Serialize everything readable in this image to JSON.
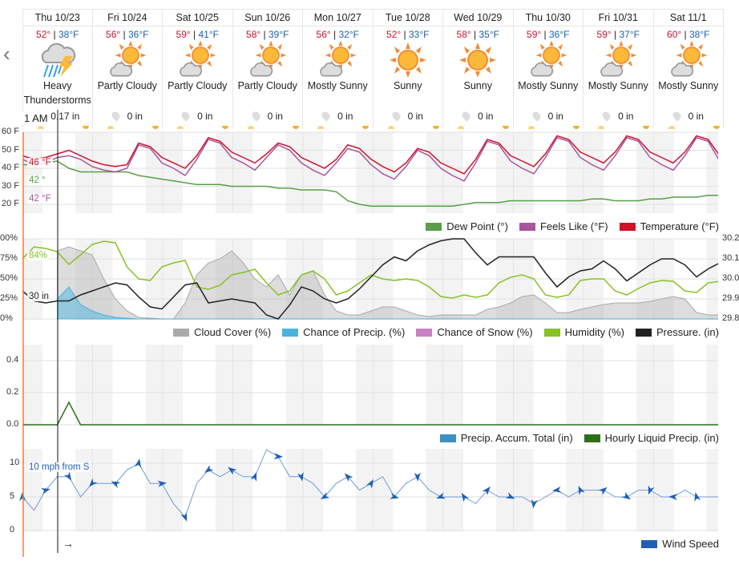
{
  "nav": {
    "prev_icon": "chevron-left-icon",
    "prev": "‹"
  },
  "days": [
    {
      "name": "Thu 10/23",
      "hi": "52°",
      "lo": "38°F",
      "cond": "Heavy Thunderstorms",
      "icon": "thunderstorm-icon",
      "precip": "0.17 in"
    },
    {
      "name": "Fri 10/24",
      "hi": "56°",
      "lo": "36°F",
      "cond": "Partly Cloudy",
      "icon": "partly-cloudy-icon",
      "precip": "0 in"
    },
    {
      "name": "Sat 10/25",
      "hi": "59°",
      "lo": "41°F",
      "cond": "Partly Cloudy",
      "icon": "partly-cloudy-icon",
      "precip": "0 in"
    },
    {
      "name": "Sun 10/26",
      "hi": "58°",
      "lo": "39°F",
      "cond": "Partly Cloudy",
      "icon": "partly-cloudy-icon",
      "precip": "0 in"
    },
    {
      "name": "Mon 10/27",
      "hi": "56°",
      "lo": "32°F",
      "cond": "Mostly Sunny",
      "icon": "partly-cloudy-icon",
      "precip": "0 in"
    },
    {
      "name": "Tue 10/28",
      "hi": "52°",
      "lo": "33°F",
      "cond": "Sunny",
      "icon": "sunny-icon",
      "precip": "0 in"
    },
    {
      "name": "Wed 10/29",
      "hi": "58°",
      "lo": "35°F",
      "cond": "Sunny",
      "icon": "sunny-icon",
      "precip": "0 in"
    },
    {
      "name": "Thu 10/30",
      "hi": "59°",
      "lo": "36°F",
      "cond": "Mostly Sunny",
      "icon": "partly-cloudy-icon",
      "precip": "0 in"
    },
    {
      "name": "Fri 10/31",
      "hi": "59°",
      "lo": "37°F",
      "cond": "Mostly Sunny",
      "icon": "partly-cloudy-icon",
      "precip": "0 in"
    },
    {
      "name": "Sat 11/1",
      "hi": "60°",
      "lo": "38°F",
      "cond": "Mostly Sunny",
      "icon": "partly-cloudy-icon",
      "precip": "0 in"
    }
  ],
  "cursor": {
    "time": "1 AM",
    "temp": "46 °F",
    "dew": "42 °",
    "feels": "42 °F",
    "humidity": "84%",
    "pressure": "30 in",
    "wind": "10 mph from S",
    "wind_dir": "→"
  },
  "axes": {
    "temp": [
      "60 F",
      "50 F",
      "40 F",
      "30 F",
      "20 F"
    ],
    "pct": [
      "00%",
      "75%",
      "50%",
      "25%",
      "0%"
    ],
    "pressure": [
      "30.2",
      "30.1",
      "30.0",
      "29.9",
      "29.8"
    ],
    "precip": [
      "0.4",
      "0.2",
      "0.0"
    ],
    "wind": [
      "10",
      "5",
      "0"
    ]
  },
  "legends": {
    "temp": [
      {
        "label": "Dew Point (°)",
        "color": "#5a9e48"
      },
      {
        "label": "Feels Like (°F)",
        "color": "#a6559e"
      },
      {
        "label": "Temperature (°F)",
        "color": "#d0112b"
      }
    ],
    "atm": [
      {
        "label": "Cloud Cover (%)",
        "color": "#aaaaaa"
      },
      {
        "label": "Chance of Precip. (%)",
        "color": "#4ab3dd"
      },
      {
        "label": "Chance of Snow (%)",
        "color": "#c97fc4"
      },
      {
        "label": "Humidity (%)",
        "color": "#88c225"
      },
      {
        "label": "Pressure. (in)",
        "color": "#222222"
      }
    ],
    "precip": [
      {
        "label": "Precip. Accum. Total (in)",
        "color": "#3d8fc0"
      },
      {
        "label": "Hourly Liquid Precip. (in)",
        "color": "#2e6e1a"
      }
    ],
    "wind": [
      {
        "label": "Wind Speed",
        "color": "#1f5fb5"
      }
    ]
  },
  "chart_data": {
    "type": "line",
    "x_step_hours": 4,
    "temperature": [
      47,
      45,
      46,
      48,
      50,
      47,
      44,
      42,
      41,
      42,
      54,
      52,
      46,
      43,
      40,
      47,
      57,
      55,
      49,
      46,
      43,
      48,
      54,
      52,
      46,
      43,
      40,
      45,
      53,
      51,
      45,
      41,
      38,
      43,
      51,
      49,
      43,
      40,
      37,
      45,
      56,
      54,
      47,
      44,
      41,
      48,
      58,
      56,
      49,
      46,
      43,
      49,
      58,
      56,
      49,
      46,
      43,
      49,
      58,
      56,
      47
    ],
    "feels_like": [
      45,
      42,
      43,
      46,
      47,
      45,
      41,
      39,
      38,
      40,
      53,
      51,
      43,
      40,
      36,
      45,
      56,
      54,
      46,
      43,
      39,
      46,
      53,
      50,
      43,
      39,
      36,
      43,
      51,
      49,
      42,
      37,
      34,
      41,
      50,
      47,
      40,
      36,
      33,
      43,
      55,
      53,
      44,
      40,
      37,
      46,
      57,
      55,
      46,
      42,
      39,
      47,
      57,
      55,
      46,
      42,
      39,
      47,
      57,
      55,
      44
    ],
    "dew_point": [
      42,
      42,
      43,
      44,
      40,
      38,
      38,
      38,
      38,
      38,
      36,
      35,
      34,
      33,
      32,
      31,
      31,
      31,
      30,
      30,
      30,
      30,
      29,
      29,
      28,
      28,
      28,
      27,
      22,
      20,
      19,
      19,
      19,
      19,
      19,
      19,
      19,
      19,
      20,
      21,
      21,
      21,
      22,
      22,
      22,
      22,
      22,
      22,
      22,
      23,
      23,
      22,
      22,
      22,
      23,
      23,
      24,
      24,
      24,
      25,
      25
    ],
    "humidity": [
      75,
      90,
      88,
      84,
      68,
      80,
      93,
      97,
      95,
      65,
      50,
      48,
      65,
      70,
      73,
      40,
      37,
      42,
      55,
      58,
      62,
      45,
      30,
      35,
      55,
      60,
      50,
      30,
      35,
      45,
      55,
      50,
      48,
      50,
      48,
      40,
      28,
      26,
      30,
      27,
      30,
      45,
      52,
      55,
      50,
      30,
      27,
      30,
      48,
      50,
      50,
      35,
      30,
      38,
      45,
      48,
      47,
      35,
      33,
      45,
      47
    ],
    "cloud_cover": [
      null,
      null,
      null,
      85,
      90,
      85,
      80,
      50,
      25,
      10,
      2,
      1,
      0,
      0,
      20,
      55,
      70,
      75,
      85,
      70,
      50,
      40,
      55,
      30,
      55,
      60,
      30,
      10,
      5,
      5,
      10,
      15,
      15,
      10,
      5,
      3,
      5,
      5,
      5,
      5,
      12,
      15,
      20,
      28,
      30,
      20,
      8,
      8,
      12,
      15,
      18,
      20,
      20,
      20,
      22,
      25,
      28,
      25,
      8,
      5,
      5
    ],
    "chance_precip": [
      null,
      null,
      null,
      25,
      40,
      18,
      10,
      5,
      2,
      1,
      0,
      0,
      0,
      0,
      0,
      0,
      0,
      0,
      0,
      0,
      0,
      0,
      0,
      0,
      0,
      0,
      0,
      0,
      0,
      0,
      0,
      0,
      0,
      0,
      0,
      0,
      0,
      0,
      0,
      0,
      0,
      0,
      0,
      0,
      0,
      0,
      0,
      0,
      0,
      0,
      0,
      0,
      0,
      0,
      0,
      0,
      0,
      0,
      0,
      0,
      0
    ],
    "pressure_in": [
      29.94,
      29.89,
      29.88,
      29.89,
      29.89,
      29.92,
      29.94,
      29.96,
      29.98,
      29.97,
      29.91,
      29.86,
      29.85,
      29.91,
      29.97,
      29.98,
      29.88,
      29.89,
      29.9,
      29.89,
      29.88,
      29.82,
      29.8,
      29.87,
      29.96,
      29.94,
      29.9,
      29.88,
      29.9,
      29.95,
      30.01,
      30.07,
      30.11,
      30.09,
      30.14,
      30.17,
      30.19,
      30.2,
      30.2,
      30.13,
      30.07,
      30.11,
      30.11,
      30.11,
      30.11,
      30.03,
      29.96,
      30.01,
      30.04,
      30.05,
      30.09,
      30.05,
      29.99,
      30.03,
      30.07,
      30.1,
      30.1,
      30.07,
      30.01,
      30.05,
      30.08
    ],
    "hourly_liquid_precip_in": [
      0,
      0,
      0,
      0,
      0.14,
      0,
      0,
      0,
      0,
      0,
      0,
      0,
      0,
      0,
      0,
      0,
      0,
      0,
      0,
      0,
      0,
      0,
      0,
      0,
      0,
      0,
      0,
      0,
      0,
      0,
      0,
      0,
      0,
      0,
      0,
      0,
      0,
      0,
      0,
      0,
      0,
      0,
      0,
      0,
      0,
      0,
      0,
      0,
      0,
      0,
      0,
      0,
      0,
      0,
      0,
      0,
      0,
      0,
      0,
      0,
      0
    ],
    "wind_mph": [
      5,
      3,
      6,
      8,
      8,
      5,
      7,
      7,
      7,
      9,
      10,
      7,
      7,
      4,
      2,
      7,
      9,
      8,
      9,
      8,
      8,
      12,
      11,
      8,
      8,
      7,
      5,
      7,
      8,
      6,
      7,
      8,
      5,
      7,
      8,
      6,
      5,
      5,
      5,
      4,
      6,
      5,
      5,
      5,
      4,
      5,
      6,
      5,
      6,
      6,
      6,
      5,
      5,
      6,
      6,
      5,
      5,
      6,
      5,
      5,
      5
    ],
    "ranges": {
      "temp": [
        15,
        60
      ],
      "pct": [
        0,
        100
      ],
      "pressure": [
        29.8,
        30.2
      ],
      "precip": [
        0,
        0.5
      ],
      "wind": [
        0,
        12
      ]
    }
  }
}
